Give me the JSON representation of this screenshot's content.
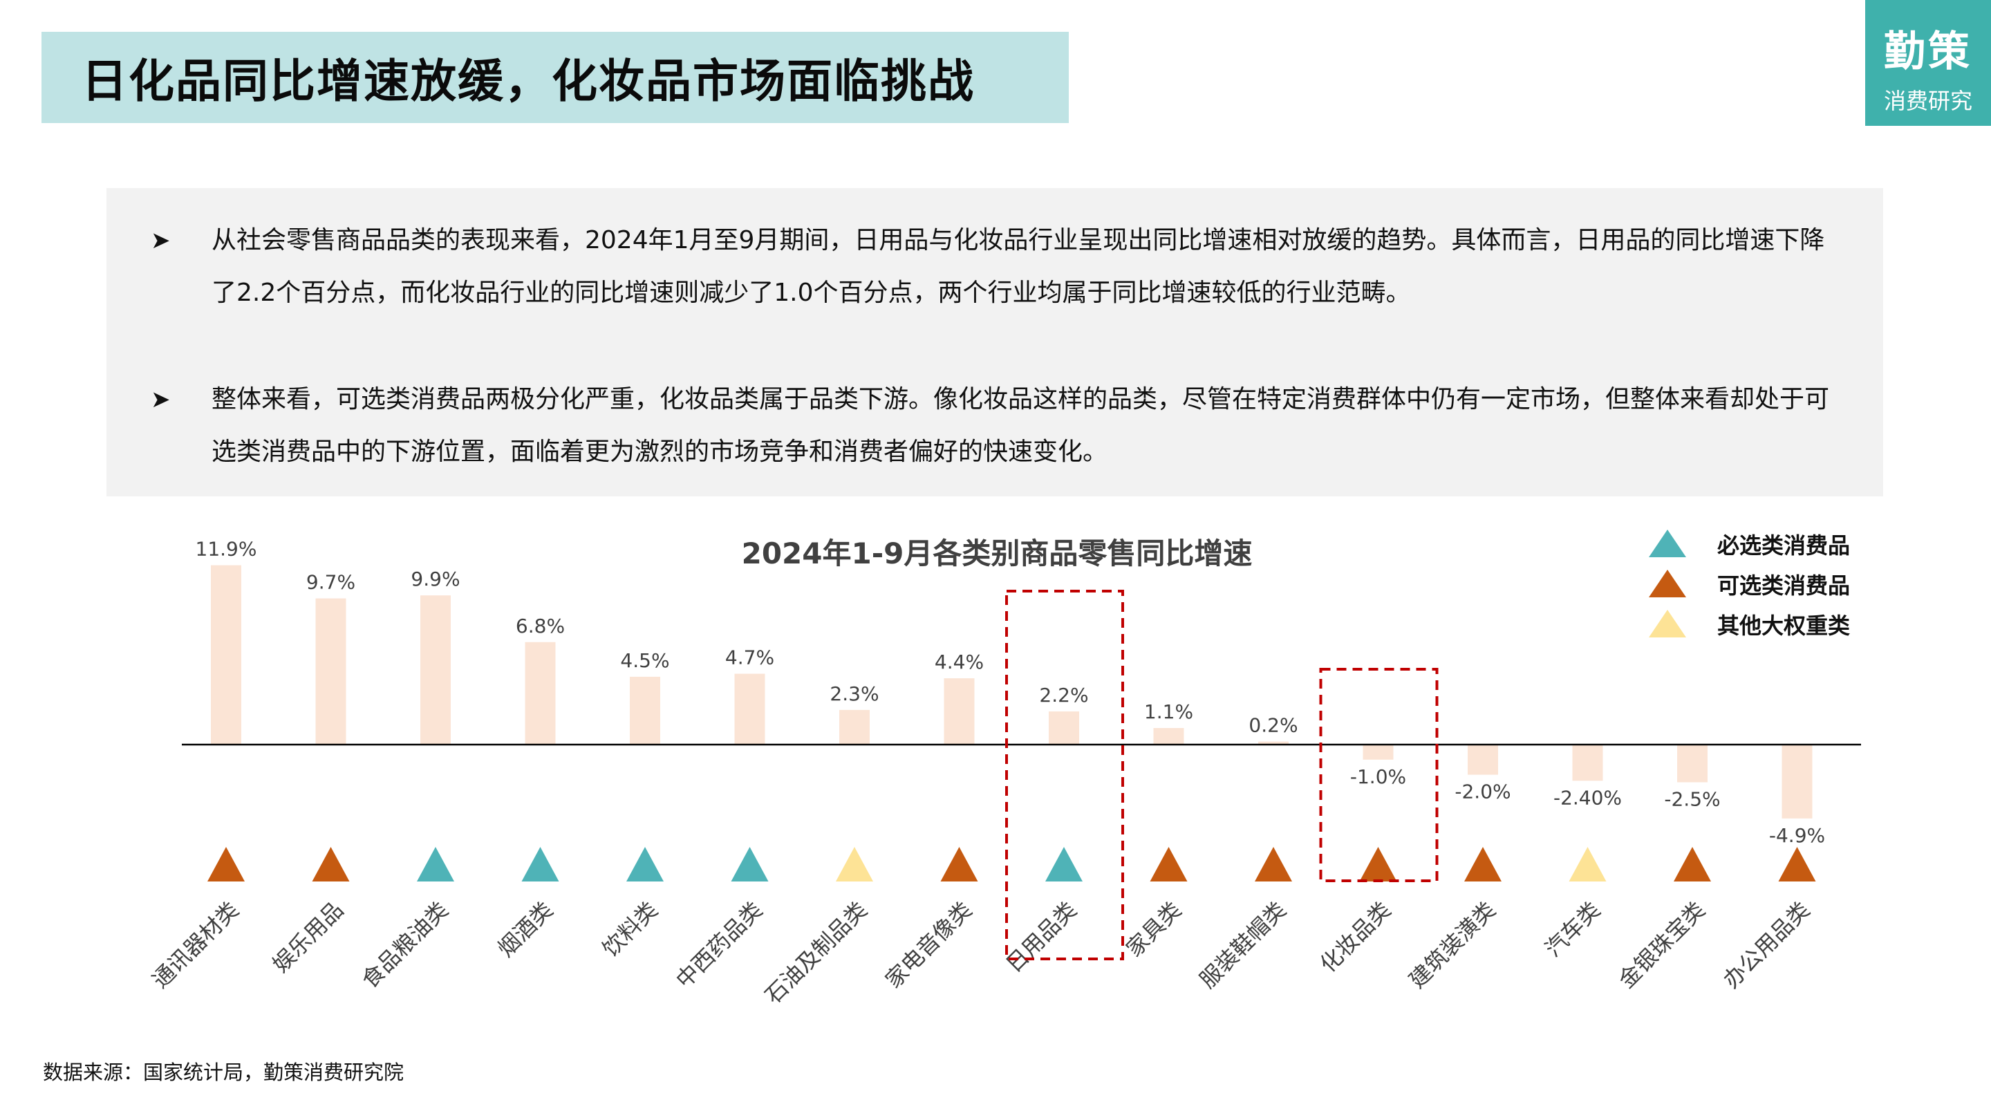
{
  "header": {
    "title": "日化品同比增速放缓，化妆品市场面临挑战"
  },
  "logo": {
    "main": "勤策",
    "sub": "消费研究"
  },
  "summary": {
    "bullet_symbol": "➤",
    "bullets": [
      "从社会零售商品品类的表现来看，2024年1月至9月期间，日用品与化妆品行业呈现出同比增速相对放缓的趋势。具体而言，日用品的同比增速下降了2.2个百分点，而化妆品行业的同比增速则减少了1.0个百分点，两个行业均属于同比增速较低的行业范畴。",
      "整体来看，可选类消费品两极分化严重，化妆品类属于品类下游。像化妆品这样的品类，尽管在特定消费群体中仍有一定市场，但整体来看却处于可选类消费品中的下游位置，面临着更为激烈的市场竞争和消费者偏好的快速变化。"
    ]
  },
  "chart_data": {
    "type": "bar",
    "title": "2024年1-9月各类别商品零售同比增速",
    "xlabel": "",
    "ylabel": "",
    "ylim": [
      -5,
      12
    ],
    "grid": false,
    "legend_position": "top-right",
    "categories": [
      "通讯器材类",
      "娱乐用品",
      "食品粮油类",
      "烟酒类",
      "饮料类",
      "中西药品类",
      "石油及制品类",
      "家电音像类",
      "日用品类",
      "家具类",
      "服装鞋帽类",
      "化妆品类",
      "建筑装潢类",
      "汽车类",
      "金银珠宝类",
      "办公用品类"
    ],
    "values": [
      11.9,
      9.7,
      9.9,
      6.8,
      4.5,
      4.7,
      2.3,
      4.4,
      2.2,
      1.1,
      0.2,
      -1.0,
      -2.0,
      -2.4,
      -2.5,
      -4.9
    ],
    "value_labels": [
      "11.9%",
      "9.7%",
      "9.9%",
      "6.8%",
      "4.5%",
      "4.7%",
      "2.3%",
      "4.4%",
      "2.2%",
      "1.1%",
      "0.2%",
      "-1.0%",
      "-2.0%",
      "-2.40%",
      "-2.5%",
      "-4.9%"
    ],
    "category_type": [
      "optional",
      "optional",
      "essential",
      "essential",
      "essential",
      "essential",
      "other",
      "optional",
      "essential",
      "optional",
      "optional",
      "optional",
      "optional",
      "other",
      "optional",
      "optional"
    ],
    "legend": [
      {
        "key": "essential",
        "label": "必选类消费品",
        "color": "#4fb3b7"
      },
      {
        "key": "optional",
        "label": "可选类消费品",
        "color": "#c55a11"
      },
      {
        "key": "other",
        "label": "其他大权重类",
        "color": "#fde396"
      }
    ],
    "highlighted": [
      "日用品类",
      "化妆品类"
    ],
    "colors": {
      "bar": "#fbe4d5",
      "highlight_box": "#c00000",
      "axis": "#000000",
      "label": "#404040"
    }
  },
  "footer": {
    "source": "数据来源：国家统计局，勤策消费研究院"
  }
}
